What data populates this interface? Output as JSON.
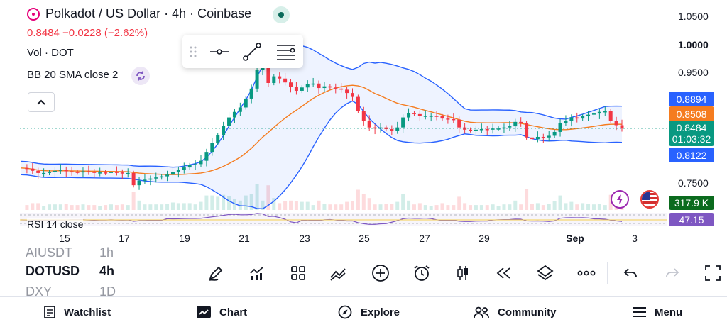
{
  "header": {
    "title": "Polkadot / US Dollar · 4h · Coinbase",
    "price_line": "0.8484  −0.0228 (−2.62%)",
    "volume_label": "Vol · DOT",
    "bb_label": "BB 20 SMA close 2",
    "rsi_label": "RSI 14 close"
  },
  "colors": {
    "up": "#089981",
    "down": "#f23645",
    "bb_band": "#2962ff",
    "bb_basis": "#f57c1f",
    "rsi": "#7e57c2",
    "accent": "#131722"
  },
  "price_scale": {
    "labels": [
      "1.0500",
      "1.0000",
      "0.9500",
      "0.7500"
    ],
    "bold_label": "1.0000",
    "bb_upper": "0.8894",
    "bb_basis": "0.8508",
    "last_price": "0.8484",
    "countdown": "01:03:32",
    "bb_lower": "0.8122",
    "volume": "317.9 K",
    "rsi": "47.15"
  },
  "x_axis": {
    "ticks": [
      "15",
      "17",
      "19",
      "21",
      "23",
      "25",
      "27",
      "29",
      "Sep",
      "3"
    ],
    "bold_tick": "Sep"
  },
  "drawing_toolbar": {
    "icons": [
      "drag-handle-icon",
      "horizontal-line-icon",
      "trend-line-icon",
      "bars-settings-icon"
    ]
  },
  "symbol_picker": {
    "prev": {
      "symbol": "AIUSDT",
      "interval": "1h"
    },
    "current": {
      "symbol": "DOTUSD",
      "interval": "4h"
    },
    "next": {
      "symbol": "DXY",
      "interval": "1D"
    }
  },
  "tools": [
    {
      "name": "draw-icon"
    },
    {
      "name": "indicators-icon"
    },
    {
      "name": "layouts-icon"
    },
    {
      "name": "compare-icon"
    },
    {
      "name": "add-icon"
    },
    {
      "name": "alert-clock-icon"
    },
    {
      "name": "chart-type-icon"
    },
    {
      "name": "replay-icon"
    },
    {
      "name": "layers-icon"
    },
    {
      "name": "more-icon"
    }
  ],
  "nav": [
    {
      "label": "Watchlist",
      "icon": "watchlist-icon"
    },
    {
      "label": "Chart",
      "icon": "chart-icon"
    },
    {
      "label": "Explore",
      "icon": "compass-icon"
    },
    {
      "label": "Community",
      "icon": "community-icon"
    },
    {
      "label": "Menu",
      "icon": "menu-icon"
    }
  ],
  "chart_data": {
    "type": "candlestick",
    "symbol": "DOTUSD",
    "interval": "4h",
    "x_ticks": [
      "15",
      "17",
      "19",
      "21",
      "23",
      "25",
      "27",
      "29",
      "Sep",
      "3"
    ],
    "ylim": [
      0.7,
      1.06
    ],
    "price_ticks": [
      1.05,
      1.0,
      0.95,
      0.75
    ],
    "last": 0.8484,
    "change": -0.0228,
    "change_pct": -2.62,
    "bb_upper_last": 0.8894,
    "bb_basis_last": 0.8508,
    "bb_lower_last": 0.8122,
    "volume_last": "317.9 K",
    "rsi_last": 47.15,
    "close_path": [
      0.777,
      0.776,
      0.772,
      0.768,
      0.768,
      0.77,
      0.772,
      0.774,
      0.771,
      0.77,
      0.769,
      0.771,
      0.77,
      0.769,
      0.769,
      0.768,
      0.77,
      0.769,
      0.767,
      0.768,
      0.746,
      0.754,
      0.756,
      0.758,
      0.76,
      0.762,
      0.765,
      0.77,
      0.774,
      0.778,
      0.782,
      0.784,
      0.79,
      0.806,
      0.822,
      0.836,
      0.853,
      0.868,
      0.878,
      0.886,
      0.902,
      0.92,
      0.954,
      0.962,
      0.93,
      0.942,
      0.938,
      0.931,
      0.923,
      0.916,
      0.922,
      0.928,
      0.929,
      0.921,
      0.924,
      0.922,
      0.92,
      0.918,
      0.912,
      0.905,
      0.88,
      0.862,
      0.85,
      0.848,
      0.85,
      0.847,
      0.844,
      0.85,
      0.868,
      0.876,
      0.874,
      0.87,
      0.871,
      0.871,
      0.87,
      0.866,
      0.865,
      0.864,
      0.85,
      0.846,
      0.845,
      0.846,
      0.847,
      0.846,
      0.848,
      0.848,
      0.85,
      0.852,
      0.86,
      0.858,
      0.832,
      0.829,
      0.833,
      0.832,
      0.835,
      0.842,
      0.858,
      0.862,
      0.868,
      0.866,
      0.87,
      0.873,
      0.875,
      0.878,
      0.879,
      0.862,
      0.854,
      0.848
    ]
  }
}
